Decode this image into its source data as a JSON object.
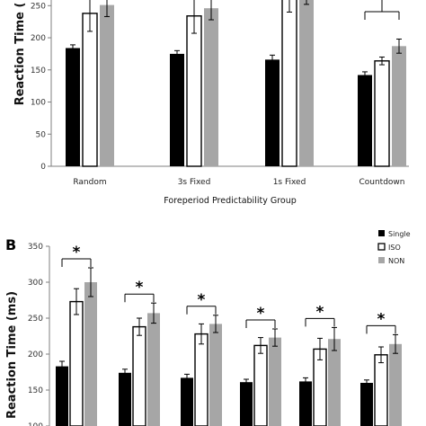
{
  "chart_data": [
    {
      "type": "bar",
      "panel": "",
      "title": "",
      "xlabel": "Foreperiod Predictability Group",
      "ylabel": "Reaction Time (",
      "categories": [
        "Random",
        "3s Fixed",
        "1s Fixed",
        "Countdown"
      ],
      "ylim": [
        0,
        270
      ],
      "yticks": [
        0,
        50,
        100,
        150,
        200,
        250
      ],
      "series": [
        {
          "values": [
            184,
            175,
            166,
            142
          ],
          "errors": [
            5,
            5,
            7,
            5
          ],
          "color": "#000000",
          "fill": "solid"
        },
        {
          "values": [
            238,
            234,
            262,
            164
          ],
          "errors": [
            28,
            27,
            22,
            6
          ],
          "color": "#ffffff",
          "fill": "outline"
        },
        {
          "values": [
            251,
            246,
            268,
            187
          ],
          "errors": [
            18,
            18,
            16,
            11
          ],
          "color": "#a6a6a6",
          "fill": "solid"
        }
      ],
      "grid": false,
      "significance": [
        {
          "group": "Countdown",
          "mark": ""
        }
      ]
    },
    {
      "type": "bar",
      "panel": "B",
      "title": "",
      "xlabel": "",
      "ylabel": "Reaction Time (ms)",
      "categories": [
        "",
        "",
        "",
        "",
        "",
        ""
      ],
      "ylim": [
        100,
        350
      ],
      "yticks": [
        100,
        150,
        200,
        250,
        300,
        350
      ],
      "series": [
        {
          "name": "Single",
          "values": [
            183,
            174,
            167,
            161,
            162,
            160
          ],
          "errors": [
            7,
            5,
            5,
            4,
            5,
            4
          ],
          "color": "#000000",
          "fill": "solid"
        },
        {
          "name": "ISO",
          "values": [
            273,
            238,
            228,
            212,
            207,
            199
          ],
          "errors": [
            18,
            12,
            14,
            11,
            15,
            11
          ],
          "color": "#ffffff",
          "fill": "outline"
        },
        {
          "name": "NON",
          "values": [
            300,
            257,
            242,
            223,
            221,
            214
          ],
          "errors": [
            20,
            14,
            12,
            12,
            16,
            13
          ],
          "color": "#a6a6a6",
          "fill": "solid"
        }
      ],
      "grid": false,
      "legend_position": "top-right",
      "significance": [
        {
          "group": 1,
          "mark": "*"
        },
        {
          "group": 2,
          "mark": "*"
        },
        {
          "group": 3,
          "mark": "*"
        },
        {
          "group": 4,
          "mark": "*"
        },
        {
          "group": 5,
          "mark": "*"
        },
        {
          "group": 6,
          "mark": "*"
        }
      ]
    }
  ]
}
